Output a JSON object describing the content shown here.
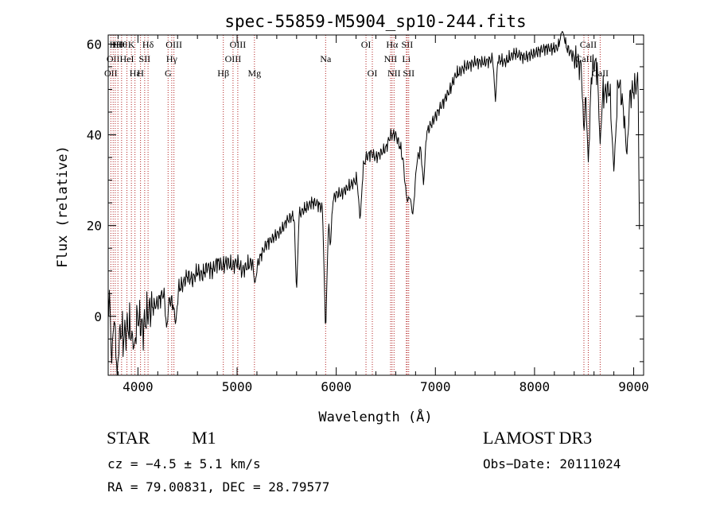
{
  "chart_data": {
    "type": "line",
    "title": "spec-55859-M5904_sp10-244.fits",
    "xlabel": "Wavelength (Å)",
    "ylabel": "Flux (relative)",
    "xlim": [
      3700,
      9100
    ],
    "ylim": [
      -13,
      62
    ],
    "xticks": [
      4000,
      5000,
      6000,
      7000,
      8000,
      9000
    ],
    "yticks": [
      0,
      20,
      40,
      60
    ],
    "x_minor_step": 200,
    "y_minor_step": 5,
    "line_color": "#000000",
    "marker_color": "#b22222",
    "spectrum": {
      "anchors": [
        [
          3700,
          5
        ],
        [
          3720,
          22
        ],
        [
          3750,
          10
        ],
        [
          3800,
          0
        ],
        [
          3850,
          -5
        ],
        [
          3900,
          -2
        ],
        [
          3950,
          -4
        ],
        [
          4000,
          0
        ],
        [
          4050,
          -3
        ],
        [
          4100,
          1
        ],
        [
          4150,
          2
        ],
        [
          4200,
          3
        ],
        [
          4250,
          5
        ],
        [
          4300,
          4
        ],
        [
          4350,
          3
        ],
        [
          4400,
          6
        ],
        [
          4450,
          7
        ],
        [
          4500,
          9
        ],
        [
          4550,
          8
        ],
        [
          4600,
          10
        ],
        [
          4650,
          9
        ],
        [
          4700,
          11
        ],
        [
          4750,
          10
        ],
        [
          4800,
          12
        ],
        [
          4850,
          11
        ],
        [
          4900,
          12
        ],
        [
          4950,
          11
        ],
        [
          5000,
          12
        ],
        [
          5050,
          10
        ],
        [
          5100,
          11
        ],
        [
          5150,
          12
        ],
        [
          5200,
          11
        ],
        [
          5250,
          14
        ],
        [
          5300,
          16
        ],
        [
          5350,
          17
        ],
        [
          5400,
          18
        ],
        [
          5450,
          19
        ],
        [
          5500,
          21
        ],
        [
          5550,
          22
        ],
        [
          5600,
          22
        ],
        [
          5650,
          23
        ],
        [
          5700,
          24
        ],
        [
          5750,
          25
        ],
        [
          5800,
          25
        ],
        [
          5850,
          24
        ],
        [
          5900,
          22
        ],
        [
          5950,
          25
        ],
        [
          6000,
          27
        ],
        [
          6050,
          27
        ],
        [
          6100,
          28
        ],
        [
          6150,
          29
        ],
        [
          6200,
          30
        ],
        [
          6250,
          31
        ],
        [
          6300,
          35
        ],
        [
          6350,
          36
        ],
        [
          6400,
          35
        ],
        [
          6450,
          36
        ],
        [
          6500,
          37
        ],
        [
          6550,
          40
        ],
        [
          6600,
          40
        ],
        [
          6650,
          37
        ],
        [
          6700,
          31
        ],
        [
          6750,
          30
        ],
        [
          6800,
          33
        ],
        [
          6850,
          37
        ],
        [
          6900,
          40
        ],
        [
          6950,
          42
        ],
        [
          7000,
          44
        ],
        [
          7050,
          46
        ],
        [
          7100,
          48
        ],
        [
          7150,
          50
        ],
        [
          7200,
          53
        ],
        [
          7300,
          55
        ],
        [
          7400,
          56
        ],
        [
          7500,
          56
        ],
        [
          7600,
          57
        ],
        [
          7700,
          56
        ],
        [
          7800,
          58
        ],
        [
          7900,
          57
        ],
        [
          8000,
          58
        ],
        [
          8100,
          59
        ],
        [
          8200,
          59
        ],
        [
          8300,
          60
        ],
        [
          8400,
          57
        ],
        [
          8500,
          54
        ],
        [
          8550,
          50
        ],
        [
          8600,
          56
        ],
        [
          8650,
          54
        ],
        [
          8700,
          49
        ],
        [
          8750,
          50
        ],
        [
          8800,
          48
        ],
        [
          8850,
          52
        ],
        [
          8900,
          45
        ],
        [
          8950,
          48
        ],
        [
          9000,
          50
        ],
        [
          9050,
          52
        ],
        [
          9100,
          54
        ]
      ],
      "features": [
        [
          3735,
          -11,
          40
        ],
        [
          3790,
          -13,
          35
        ],
        [
          3960,
          -7,
          30
        ],
        [
          4290,
          -3,
          25
        ],
        [
          4380,
          -2,
          30
        ],
        [
          5180,
          7,
          25
        ],
        [
          5600,
          5,
          25
        ],
        [
          5893,
          -4,
          30
        ],
        [
          5940,
          15,
          25
        ],
        [
          6240,
          21,
          30
        ],
        [
          6720,
          25,
          40
        ],
        [
          6770,
          22,
          40
        ],
        [
          6880,
          29,
          30
        ],
        [
          7605,
          47,
          25
        ],
        [
          8280,
          63,
          40
        ],
        [
          8498,
          40,
          25
        ],
        [
          8542,
          34,
          30
        ],
        [
          8662,
          38,
          30
        ],
        [
          8800,
          32,
          40
        ],
        [
          8930,
          35,
          30
        ],
        [
          9065,
          0,
          20
        ]
      ]
    },
    "line_markers": [
      {
        "wl": 3727,
        "label": "OII",
        "row": 2
      },
      {
        "wl": 3750,
        "label": "OII",
        "row": 1
      },
      {
        "wl": 3771,
        "label": "Hθ",
        "row": 0
      },
      {
        "wl": 3798,
        "label": "Hθ",
        "row": 0
      },
      {
        "wl": 3835,
        "label": "Hθ",
        "row": 0
      },
      {
        "wl": 3889,
        "label": "HeI",
        "row": 1
      },
      {
        "wl": 3934,
        "label": "K",
        "row": 0
      },
      {
        "wl": 3970,
        "label": "Hε",
        "row": 2
      },
      {
        "wl": 4026,
        "label": "H",
        "row": 2
      },
      {
        "wl": 4068,
        "label": "SII",
        "row": 1
      },
      {
        "wl": 4102,
        "label": "Hδ",
        "row": 0
      },
      {
        "wl": 4304,
        "label": "G",
        "row": 2
      },
      {
        "wl": 4341,
        "label": "Hγ",
        "row": 1
      },
      {
        "wl": 4363,
        "label": "OIII",
        "row": 0
      },
      {
        "wl": 4861,
        "label": "Hβ",
        "row": 2
      },
      {
        "wl": 4959,
        "label": "OIII",
        "row": 1
      },
      {
        "wl": 5007,
        "label": "OIII",
        "row": 0
      },
      {
        "wl": 5175,
        "label": "Mg",
        "row": 2
      },
      {
        "wl": 5893,
        "label": "Na",
        "row": 1
      },
      {
        "wl": 6300,
        "label": "OI",
        "row": 0
      },
      {
        "wl": 6364,
        "label": "OI",
        "row": 2
      },
      {
        "wl": 6548,
        "label": "NII",
        "row": 1
      },
      {
        "wl": 6563,
        "label": "Hα",
        "row": 0
      },
      {
        "wl": 6583,
        "label": "NII",
        "row": 2
      },
      {
        "wl": 6707,
        "label": "Li",
        "row": 1
      },
      {
        "wl": 6716,
        "label": "SII",
        "row": 0
      },
      {
        "wl": 6731,
        "label": "SII",
        "row": 2
      },
      {
        "wl": 8498,
        "label": "CaII",
        "row": 1
      },
      {
        "wl": 8542,
        "label": "CaII",
        "row": 0
      },
      {
        "wl": 8662,
        "label": "CaII",
        "row": 2
      }
    ]
  },
  "info": {
    "class": "STAR",
    "subclass": "M1",
    "survey": "LAMOST DR3",
    "cz": "cz = −4.5 ± 5.1 km/s",
    "obs_date": "Obs−Date: 20111024",
    "radec": "RA =  79.00831, DEC =  28.79577"
  }
}
